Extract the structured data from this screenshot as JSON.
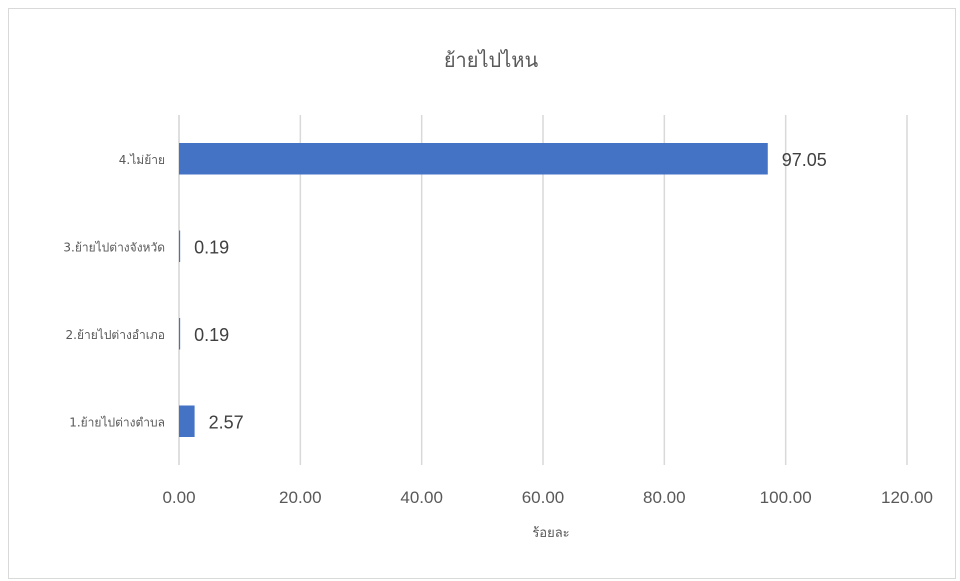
{
  "chart_data": {
    "type": "bar",
    "orientation": "horizontal",
    "title": "ย้ายไปไหน",
    "xlabel": "ร้อยละ",
    "ylabel": "",
    "categories": [
      "1.ย้ายไปต่างตำบล",
      "2.ย้ายไปต่างอำเภอ",
      "3.ย้ายไปต่างจังหวัด",
      "4.ไม่ย้าย"
    ],
    "values": [
      2.57,
      0.19,
      0.19,
      97.05
    ],
    "data_labels": [
      "2.57",
      "0.19",
      "0.19",
      "97.05"
    ],
    "xlim": [
      0,
      120
    ],
    "x_ticks": [
      "0.00",
      "20.00",
      "40.00",
      "60.00",
      "80.00",
      "100.00",
      "120.00"
    ],
    "grid": "vertical",
    "legend": "none",
    "bar_color": "#4472c4"
  }
}
